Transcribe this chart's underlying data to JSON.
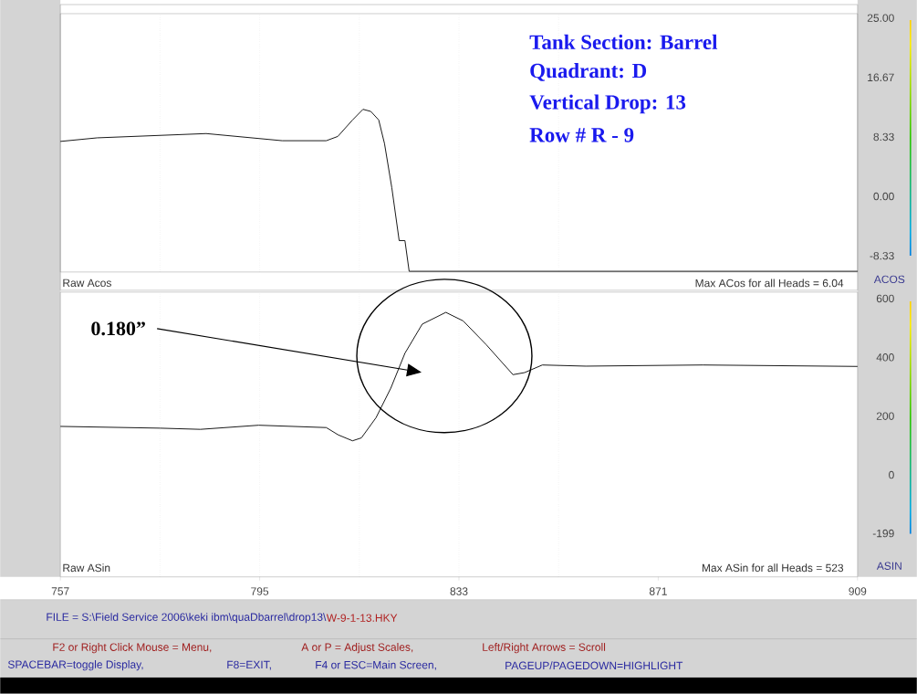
{
  "chart_data": [
    {
      "type": "line",
      "x": [
        757,
        764,
        784.8,
        799.3,
        807.7,
        809.9,
        812.7,
        814.7,
        816.2,
        817.7,
        818.8,
        820.2,
        821.6,
        822.7,
        823.5,
        909
      ],
      "series": [
        {
          "color": "#000000",
          "values": [
            7.7,
            8.2,
            8.8,
            7.8,
            7.8,
            8.4,
            10.7,
            12.2,
            11.9,
            10.7,
            7.4,
            1.2,
            -6.2,
            -6.2,
            -10.5,
            -10.5
          ]
        }
      ],
      "xlim": [
        757,
        909
      ],
      "xticks": [
        757,
        795,
        833,
        871,
        909
      ],
      "tick_labels": "y",
      "ylim": [
        -10.6,
        25.6
      ],
      "yticks": [
        {
          "value": 25,
          "label": "25.00"
        },
        {
          "value": 16.67,
          "label": "16.67"
        },
        {
          "value": 8.33,
          "label": "8.33"
        },
        {
          "value": 0,
          "label": "0.00"
        },
        {
          "value": -8.33,
          "label": "-8.33"
        }
      ],
      "ylabel": "ACOS",
      "ref_lines": [
        {
          "axis": "x",
          "value": 776,
          "color": "#bbbbbb",
          "line_style": "dotted"
        },
        {
          "axis": "x",
          "value": 795,
          "color": "#bbbbbb",
          "line_style": "dotted"
        },
        {
          "axis": "x",
          "value": 814,
          "color": "#bbbbbb",
          "line_style": "dotted"
        },
        {
          "axis": "x",
          "value": 833,
          "color": "#bbbbbb",
          "line_style": "dotted"
        },
        {
          "axis": "x",
          "value": 852,
          "color": "#bbbbbb",
          "line_style": "dotted"
        }
      ],
      "annotations": [
        "Tank Section: Barrel",
        "Quadrant: D",
        "Vertical Drop: 13",
        "Row # R - 9",
        "Raw Acos",
        "Max ACos for all Heads = 6.04"
      ]
    },
    {
      "type": "line",
      "x": [
        757,
        776,
        783.7,
        794.8,
        807.7,
        810,
        812.7,
        814.4,
        817.2,
        820,
        822.7,
        826,
        830.5,
        833.8,
        838.2,
        843.3,
        845.5,
        848.9,
        857.2,
        879.5,
        909
      ],
      "series": [
        {
          "color": "#000000",
          "values": [
            165,
            159,
            155,
            169,
            161,
            136,
            116,
            126,
            195,
            295,
            414,
            513,
            553,
            524,
            443,
            341,
            348,
            374,
            370,
            374,
            369
          ]
        }
      ],
      "xlim": [
        757,
        909
      ],
      "xticks": [
        757,
        795,
        833,
        871,
        909
      ],
      "ylim": [
        -347,
        622
      ],
      "yticks": [
        600,
        400,
        200,
        0,
        -199
      ],
      "ylabel": "ASIN",
      "ref_lines": [
        {
          "axis": "x",
          "value": 776,
          "color": "#bbbbbb",
          "line_style": "dotted"
        },
        {
          "axis": "x",
          "value": 795,
          "color": "#bbbbbb",
          "line_style": "dotted"
        },
        {
          "axis": "x",
          "value": 814,
          "color": "#bbbbbb",
          "line_style": "dotted"
        },
        {
          "axis": "x",
          "value": 833,
          "color": "#bbbbbb",
          "line_style": "dotted"
        },
        {
          "axis": "x",
          "value": 852,
          "color": "#bbbbbb",
          "line_style": "dotted"
        }
      ],
      "annotations": [
        "0.180”",
        "Raw ASin",
        "Max ASin for all Heads =   523",
        "FILE = S:\\Field Service 2006\\keki ibm\\quaDbarrel\\drop13\\",
        "W-9-1-13.HKY",
        "F2 or Right Click Mouse = Menu,",
        "A or P = Adjust Scales,",
        "Left/Right Arrows = Scroll",
        "SPACEBAR=toggle Display,",
        "F8=EXIT,",
        "F4 or ESC=Main Screen,",
        "PAGEUP/PAGEDOWN=HIGHLIGHT"
      ]
    }
  ]
}
